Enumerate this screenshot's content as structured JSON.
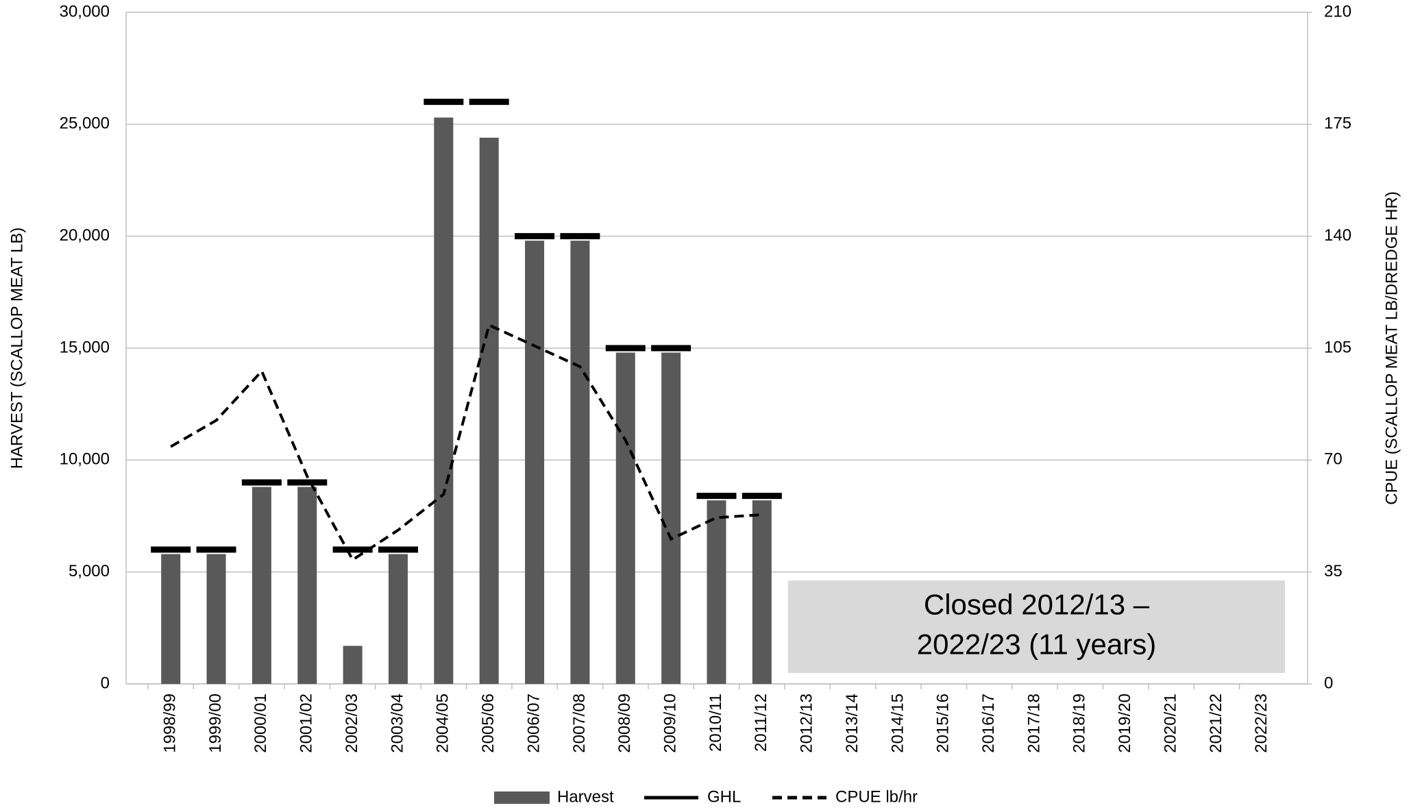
{
  "chart_data": {
    "type": "bar-line",
    "categories": [
      "1998/99",
      "1999/00",
      "2000/01",
      "2001/02",
      "2002/03",
      "2003/04",
      "2004/05",
      "2005/06",
      "2006/07",
      "2007/08",
      "2008/09",
      "2009/10",
      "2010/11",
      "2011/12",
      "2012/13",
      "2013/14",
      "2014/15",
      "2015/16",
      "2016/17",
      "2017/18",
      "2018/19",
      "2019/20",
      "2020/21",
      "2021/22",
      "2022/23"
    ],
    "series": [
      {
        "name": "Harvest",
        "type": "bar",
        "color": "#595959",
        "values": [
          5800,
          5800,
          8800,
          8800,
          1700,
          5800,
          25300,
          24400,
          19800,
          19800,
          14800,
          14800,
          8200,
          8200,
          null,
          null,
          null,
          null,
          null,
          null,
          null,
          null,
          null,
          null,
          null
        ]
      },
      {
        "name": "GHL",
        "type": "marker",
        "color": "#000000",
        "values": [
          6000,
          6000,
          9000,
          9000,
          6000,
          6000,
          26000,
          26000,
          20000,
          20000,
          15000,
          15000,
          8400,
          8400,
          null,
          null,
          null,
          null,
          null,
          null,
          null,
          null,
          null,
          null,
          null
        ]
      },
      {
        "name": "CPUE lb/hr",
        "type": "line",
        "axis": "y2",
        "color": "#000000",
        "dashed": true,
        "values": [
          74.2,
          82.4,
          97.8,
          64.9,
          38.8,
          48.1,
          59.3,
          112.2,
          105.7,
          99.2,
          76.2,
          45.3,
          52,
          52.9,
          null,
          null,
          null,
          null,
          null,
          null,
          null,
          null,
          null,
          null,
          null
        ]
      }
    ],
    "ylabel": "HARVEST (SCALLOP MEAT LB)",
    "y2label": "CPUE (SCALLOP MEAT LB/DREDGE HR)",
    "ylim": [
      0,
      30000
    ],
    "yticks": [
      0,
      {
        "value": 5000,
        "label": "5,000"
      },
      {
        "value": 10000,
        "label": "10,000"
      },
      {
        "value": 15000,
        "label": "15,000"
      },
      {
        "value": 20000,
        "label": "20,000"
      },
      {
        "value": 25000,
        "label": "25,000"
      },
      {
        "value": 30000,
        "label": "30,000"
      }
    ],
    "y2lim": [
      0,
      210
    ],
    "y2ticks": [
      0,
      35,
      70,
      105,
      140,
      175,
      210
    ],
    "grid": true,
    "legend": "bottom",
    "annotation": {
      "lines": [
        "Closed 2012/13 –",
        "2022/23 (11 years)"
      ],
      "color": "#d9d9d9"
    }
  }
}
